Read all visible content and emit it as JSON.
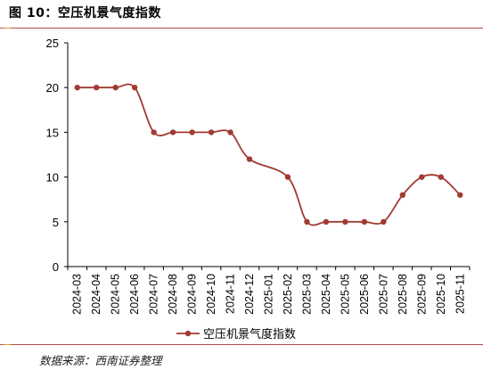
{
  "figure_title": "图 10：空压机景气度指数",
  "source": "数据来源：西南证券整理",
  "colors": {
    "series": "#a23a32",
    "accent_rule": "#b1504a",
    "axis": "#000000"
  },
  "chart_data": {
    "type": "line",
    "title": "",
    "xlabel": "",
    "ylabel": "",
    "ylim": [
      0,
      25
    ],
    "yticks": [
      0,
      5,
      10,
      15,
      20,
      25
    ],
    "grid": false,
    "legend_position": "bottom-center",
    "x": [
      "2024-03",
      "2024-04",
      "2024-05",
      "2024-06",
      "2024-07",
      "2024-08",
      "2024-09",
      "2024-10",
      "2024-11",
      "2024-12",
      "2025-01",
      "2025-02",
      "2025-03",
      "2025-04",
      "2025-05",
      "2025-06",
      "2025-07",
      "2025-08",
      "2025-09",
      "2025-10",
      "2025-11"
    ],
    "series": [
      {
        "name": "空压机景气度指数",
        "values": [
          20,
          20,
          20,
          20,
          15,
          15,
          15,
          15,
          15,
          12,
          null,
          10,
          5,
          5,
          5,
          5,
          5,
          8,
          10,
          10,
          8
        ]
      }
    ]
  }
}
